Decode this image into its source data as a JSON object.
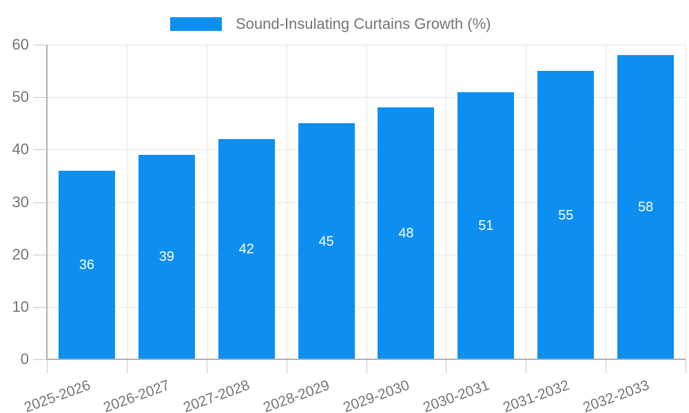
{
  "legend": {
    "label": "Sound-Insulating Curtains Growth (%)"
  },
  "chart_data": {
    "type": "bar",
    "title": "Sound-Insulating Curtains Growth (%)",
    "categories": [
      "2025-2026",
      "2026-2027",
      "2027-2028",
      "2028-2029",
      "2029-2030",
      "2030-2031",
      "2031-2032",
      "2032-2033"
    ],
    "values": [
      36,
      39,
      42,
      45,
      48,
      51,
      55,
      58
    ],
    "xlabel": "",
    "ylabel": "",
    "ylim": [
      0,
      60
    ],
    "y_ticks": [
      0,
      10,
      20,
      30,
      40,
      50,
      60
    ],
    "grid": true,
    "legend_position": "top",
    "bar_labels_inside": true
  },
  "colors": {
    "bar": "#0d8ff2",
    "bar_value_label": "#ffffff",
    "axis_text": "#757575",
    "legend_text": "#757575",
    "gridline": "#e6e6e6",
    "tick": "#c7c7c7",
    "axis_line": "#b0b0b0",
    "background": "#ffffff"
  }
}
